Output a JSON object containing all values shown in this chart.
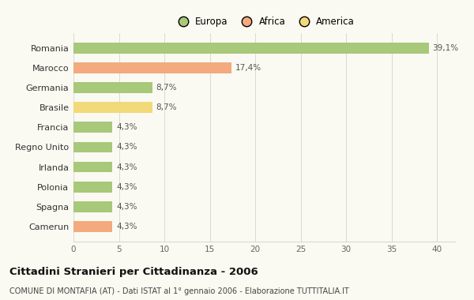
{
  "categories": [
    "Camerun",
    "Spagna",
    "Polonia",
    "Irlanda",
    "Regno Unito",
    "Francia",
    "Brasile",
    "Germania",
    "Marocco",
    "Romania"
  ],
  "values": [
    4.3,
    4.3,
    4.3,
    4.3,
    4.3,
    4.3,
    8.7,
    8.7,
    17.4,
    39.1
  ],
  "labels": [
    "4,3%",
    "4,3%",
    "4,3%",
    "4,3%",
    "4,3%",
    "4,3%",
    "8,7%",
    "8,7%",
    "17,4%",
    "39,1%"
  ],
  "colors": [
    "#f2aa7e",
    "#a8c87a",
    "#a8c87a",
    "#a8c87a",
    "#a8c87a",
    "#a8c87a",
    "#f2d97a",
    "#a8c87a",
    "#f2aa7e",
    "#a8c87a"
  ],
  "legend_labels": [
    "Europa",
    "Africa",
    "America"
  ],
  "legend_colors": [
    "#a8c87a",
    "#f2aa7e",
    "#f2d97a"
  ],
  "xlim": [
    0,
    42
  ],
  "xticks": [
    0,
    5,
    10,
    15,
    20,
    25,
    30,
    35,
    40
  ],
  "title": "Cittadini Stranieri per Cittadinanza - 2006",
  "subtitle": "COMUNE DI MONTAFIA (AT) - Dati ISTAT al 1° gennaio 2006 - Elaborazione TUTTITALIA.IT",
  "bg_color": "#fafaf2",
  "grid_color": "#d8d8d8",
  "bar_height": 0.55
}
